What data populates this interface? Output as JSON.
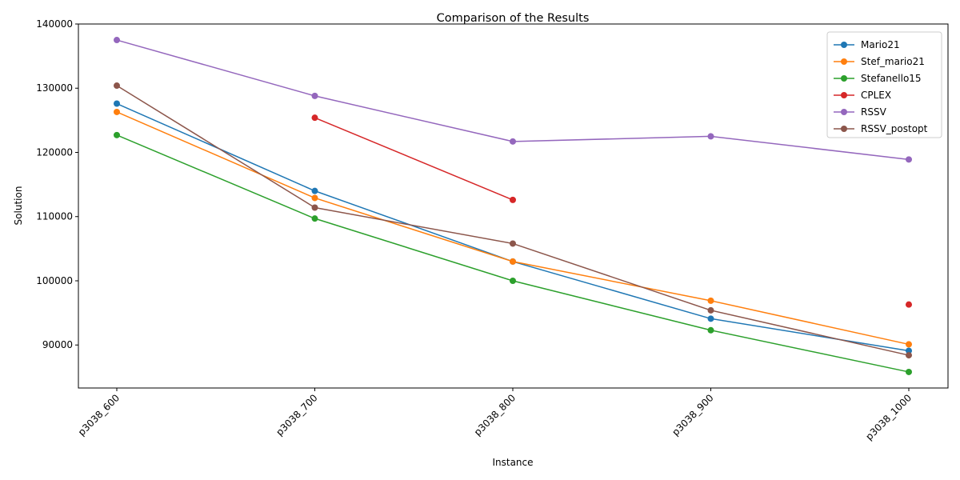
{
  "chart_data": {
    "type": "line",
    "title": "Comparison of the Results",
    "xlabel": "Instance",
    "ylabel": "Solution",
    "categories": [
      "p3038_600",
      "p3038_700",
      "p3038_800",
      "p3038_900",
      "p3038_1000"
    ],
    "ylim": [
      83300,
      140000
    ],
    "yticks": [
      90000,
      100000,
      110000,
      120000,
      130000,
      140000
    ],
    "grid": false,
    "legend_position": "top-right",
    "series": [
      {
        "name": "Mario21",
        "color": "#1f77b4",
        "values": [
          127600,
          114000,
          103000,
          94100,
          89100
        ]
      },
      {
        "name": "Stef_mario21",
        "color": "#ff7f0e",
        "values": [
          126300,
          112900,
          103000,
          96900,
          90100
        ]
      },
      {
        "name": "Stefanello15",
        "color": "#2ca02c",
        "values": [
          122700,
          109700,
          100000,
          92300,
          85800
        ]
      },
      {
        "name": "CPLEX",
        "color": "#d62728",
        "values": [
          null,
          125400,
          112600,
          null,
          96300
        ]
      },
      {
        "name": "RSSV",
        "color": "#9467bd",
        "values": [
          137500,
          128800,
          121700,
          122500,
          118900
        ]
      },
      {
        "name": "RSSV_postopt",
        "color": "#8c564b",
        "values": [
          130400,
          111400,
          105800,
          95400,
          88400
        ]
      }
    ]
  }
}
